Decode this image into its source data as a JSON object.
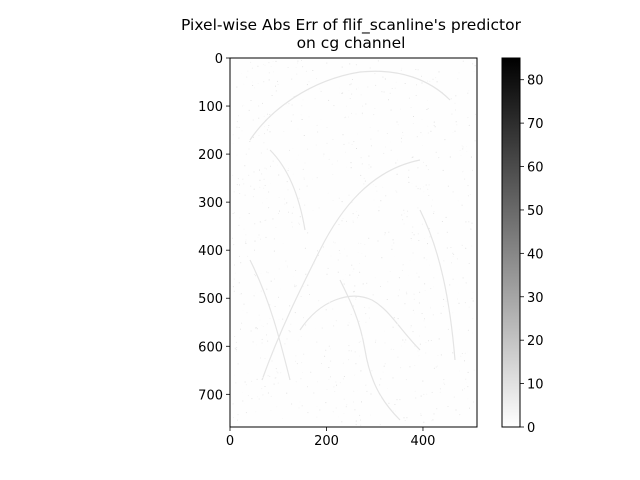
{
  "chart_data": {
    "type": "heatmap",
    "title": "Pixel-wise Abs Err of flif_scanline's predictor",
    "subtitle": "on cg channel",
    "xlabel": "",
    "ylabel": "",
    "xlim": [
      0,
      512
    ],
    "ylim": [
      768,
      0
    ],
    "x_ticks": [
      0,
      200,
      400
    ],
    "y_ticks": [
      0,
      100,
      200,
      300,
      400,
      500,
      600,
      700
    ],
    "colormap": "gray_r",
    "colorbar": {
      "range": [
        0,
        85
      ],
      "ticks": [
        0,
        10,
        20,
        30,
        40,
        50,
        60,
        70,
        80
      ]
    },
    "grid": false,
    "description_values": {
      "dominant_error": 0,
      "edge_error_max_visible": 20
    }
  }
}
